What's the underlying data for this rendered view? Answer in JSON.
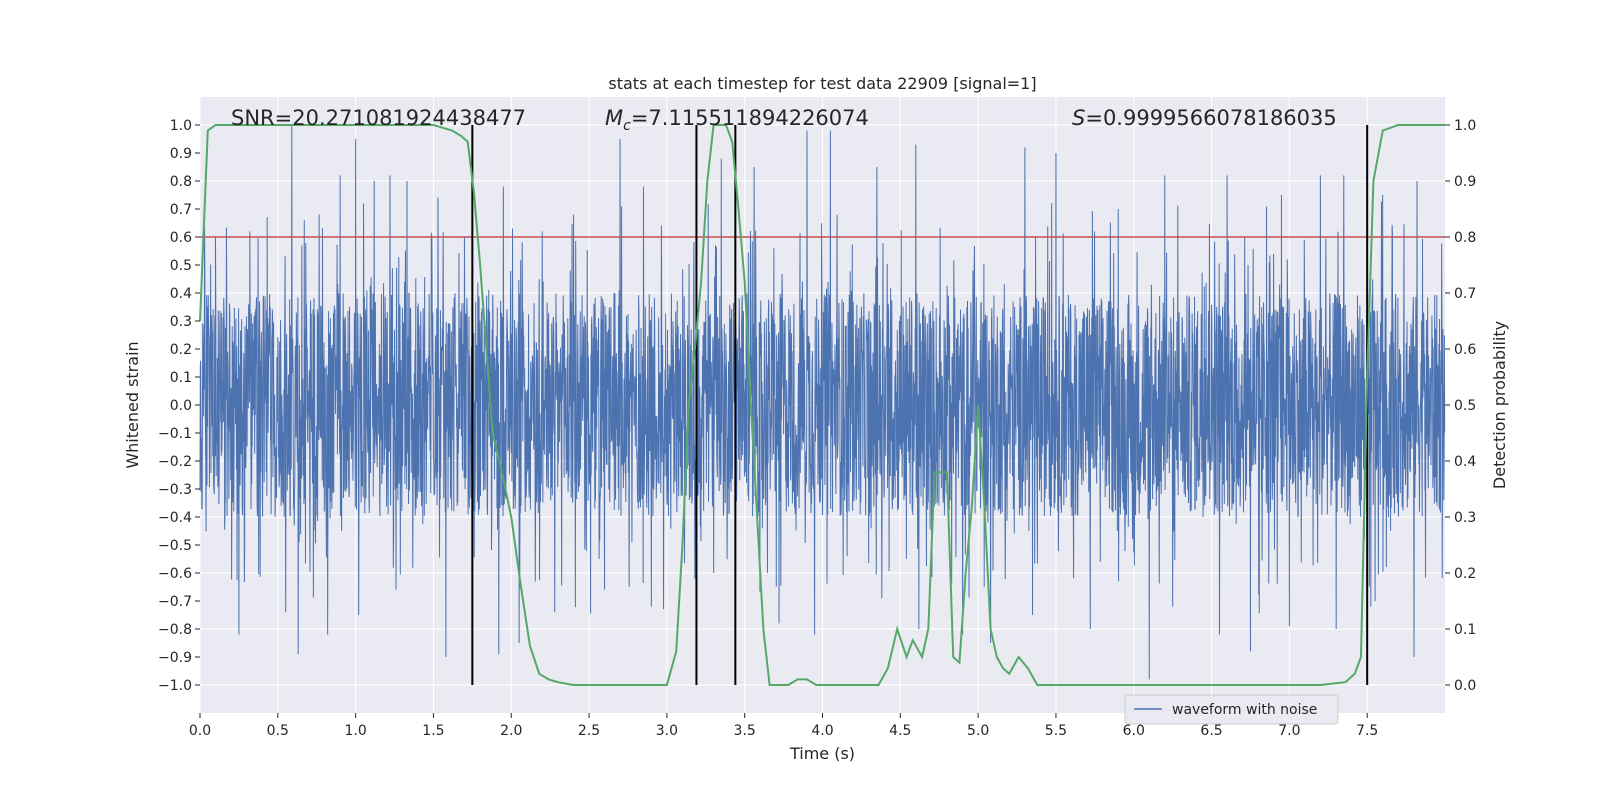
{
  "chart_data": {
    "type": "line",
    "title": "stats at each timestep for test data 22909 [signal=1]",
    "xlabel": "Time (s)",
    "ylabel": "Whitened strain",
    "y2label": "Detection probability",
    "xlim": [
      0.0,
      8.0
    ],
    "ylim": [
      -1.1,
      1.1
    ],
    "y2lim": [
      -0.05,
      1.05
    ],
    "xticks": [
      "0.0",
      "0.5",
      "1.0",
      "1.5",
      "2.0",
      "2.5",
      "3.0",
      "3.5",
      "4.0",
      "4.5",
      "5.0",
      "5.5",
      "6.0",
      "6.5",
      "7.0",
      "7.5"
    ],
    "yticks": [
      "1.0",
      "0.9",
      "0.8",
      "0.7",
      "0.6",
      "0.5",
      "0.4",
      "0.3",
      "0.2",
      "0.1",
      "0.0",
      "−0.1",
      "−0.2",
      "−0.3",
      "−0.4",
      "−0.5",
      "−0.6",
      "−0.7",
      "−0.8",
      "−0.9",
      "−1.0"
    ],
    "y2ticks": [
      "1.0",
      "0.9",
      "0.8",
      "0.7",
      "0.6",
      "0.5",
      "0.4",
      "0.3",
      "0.2",
      "0.1",
      "0.0"
    ],
    "grid": true,
    "legend": {
      "placement": "lower-right",
      "entries": [
        "waveform with noise"
      ]
    },
    "annotations": {
      "snr": "SNR=20.271081924438477",
      "mc_symbol": "M",
      "mc_sub": "c",
      "mc_value": "=7.115511894226074",
      "s_symbol": "S",
      "s_value": "=0.9999566078186035"
    },
    "threshold": {
      "value": 0.8,
      "color": "#c44e52"
    },
    "vertical_lines": [
      1.75,
      3.19,
      3.44,
      7.5
    ],
    "series": [
      {
        "name": "waveform with noise",
        "axis": "left",
        "color": "#4c72b0",
        "style": "dense-noise",
        "n": 4096,
        "core_amplitude": 0.4,
        "spikes_top": [
          [
            0.1,
            0.6
          ],
          [
            0.25,
            0.84
          ],
          [
            0.32,
            0.62
          ],
          [
            0.55,
            0.72
          ],
          [
            0.59,
            1.0
          ],
          [
            0.67,
            0.66
          ],
          [
            0.82,
            0.8
          ],
          [
            0.9,
            0.82
          ],
          [
            1.0,
            0.95
          ],
          [
            1.05,
            0.72
          ],
          [
            1.12,
            0.8
          ],
          [
            1.22,
            0.82
          ],
          [
            1.33,
            0.8
          ],
          [
            1.53,
            0.74
          ],
          [
            1.7,
            0.6
          ],
          [
            1.95,
            0.78
          ],
          [
            2.05,
            0.72
          ],
          [
            2.2,
            0.62
          ],
          [
            2.4,
            0.68
          ],
          [
            2.7,
            0.95
          ],
          [
            2.85,
            0.78
          ],
          [
            3.35,
            0.88
          ],
          [
            3.56,
            0.85
          ],
          [
            3.9,
            0.98
          ],
          [
            4.05,
            0.98
          ],
          [
            4.35,
            0.85
          ],
          [
            4.6,
            0.93
          ],
          [
            4.9,
            0.9
          ],
          [
            5.3,
            0.92
          ],
          [
            5.5,
            0.9
          ],
          [
            5.9,
            0.7
          ],
          [
            6.2,
            0.82
          ],
          [
            6.6,
            0.82
          ],
          [
            6.95,
            0.75
          ],
          [
            7.2,
            0.82
          ],
          [
            7.35,
            0.82
          ],
          [
            7.6,
            0.75
          ],
          [
            7.82,
            0.8
          ]
        ],
        "spikes_bottom": [
          [
            0.25,
            -0.82
          ],
          [
            0.55,
            -0.74
          ],
          [
            0.63,
            -0.89
          ],
          [
            0.82,
            -0.82
          ],
          [
            1.02,
            -0.75
          ],
          [
            1.26,
            -0.66
          ],
          [
            1.58,
            -0.9
          ],
          [
            1.75,
            -0.78
          ],
          [
            1.92,
            -0.89
          ],
          [
            2.05,
            -0.85
          ],
          [
            2.28,
            -0.74
          ],
          [
            2.6,
            -0.66
          ],
          [
            2.9,
            -0.72
          ],
          [
            3.18,
            -0.62
          ],
          [
            3.3,
            -0.6
          ],
          [
            3.72,
            -0.78
          ],
          [
            3.95,
            -0.82
          ],
          [
            4.38,
            -0.69
          ],
          [
            4.62,
            -0.8
          ],
          [
            4.9,
            -0.82
          ],
          [
            5.08,
            -0.85
          ],
          [
            5.35,
            -0.75
          ],
          [
            5.72,
            -0.8
          ],
          [
            6.1,
            -0.98
          ],
          [
            6.25,
            -0.72
          ],
          [
            6.55,
            -0.82
          ],
          [
            6.75,
            -0.88
          ],
          [
            7.0,
            -0.79
          ],
          [
            7.3,
            -0.8
          ],
          [
            7.55,
            -0.7
          ],
          [
            7.8,
            -0.9
          ]
        ]
      },
      {
        "name": "detection probability",
        "axis": "right",
        "color": "#55a868",
        "x": [
          0.0,
          0.05,
          0.1,
          0.3,
          0.5,
          0.8,
          1.0,
          1.3,
          1.5,
          1.62,
          1.68,
          1.72,
          1.76,
          1.8,
          1.84,
          1.88,
          1.94,
          2.0,
          2.06,
          2.12,
          2.18,
          2.24,
          2.3,
          2.4,
          2.6,
          2.8,
          3.0,
          3.06,
          3.1,
          3.14,
          3.18,
          3.22,
          3.26,
          3.3,
          3.34,
          3.38,
          3.42,
          3.46,
          3.5,
          3.54,
          3.58,
          3.62,
          3.66,
          3.72,
          3.78,
          3.84,
          3.9,
          3.96,
          4.02,
          4.1,
          4.2,
          4.3,
          4.36,
          4.42,
          4.48,
          4.54,
          4.58,
          4.64,
          4.68,
          4.72,
          4.76,
          4.8,
          4.84,
          4.88,
          4.92,
          4.96,
          5.0,
          5.04,
          5.08,
          5.12,
          5.16,
          5.2,
          5.26,
          5.32,
          5.38,
          5.44,
          5.5,
          5.8,
          6.0,
          6.2,
          6.4,
          6.5,
          6.6,
          6.8,
          7.0,
          7.2,
          7.36,
          7.42,
          7.46,
          7.5,
          7.54,
          7.6,
          7.7,
          8.0
        ],
        "y": [
          0.65,
          0.99,
          1.0,
          1.0,
          1.0,
          1.0,
          1.0,
          1.0,
          1.0,
          0.99,
          0.98,
          0.97,
          0.88,
          0.75,
          0.6,
          0.45,
          0.38,
          0.3,
          0.18,
          0.07,
          0.02,
          0.01,
          0.005,
          0.0,
          0.0,
          0.0,
          0.0,
          0.06,
          0.25,
          0.5,
          0.6,
          0.72,
          0.9,
          1.0,
          1.0,
          1.0,
          0.97,
          0.85,
          0.72,
          0.5,
          0.3,
          0.1,
          0.0,
          0.0,
          0.0,
          0.01,
          0.01,
          0.0,
          0.0,
          0.0,
          0.0,
          0.0,
          0.0,
          0.03,
          0.1,
          0.05,
          0.08,
          0.05,
          0.1,
          0.38,
          0.38,
          0.38,
          0.05,
          0.04,
          0.2,
          0.32,
          0.5,
          0.32,
          0.1,
          0.05,
          0.03,
          0.02,
          0.05,
          0.03,
          0.0,
          0.0,
          0.0,
          0.0,
          0.0,
          0.0,
          0.0,
          0.0,
          0.0,
          0.0,
          0.0,
          0.0,
          0.005,
          0.02,
          0.05,
          0.55,
          0.9,
          0.99,
          1.0,
          1.0
        ]
      }
    ]
  }
}
